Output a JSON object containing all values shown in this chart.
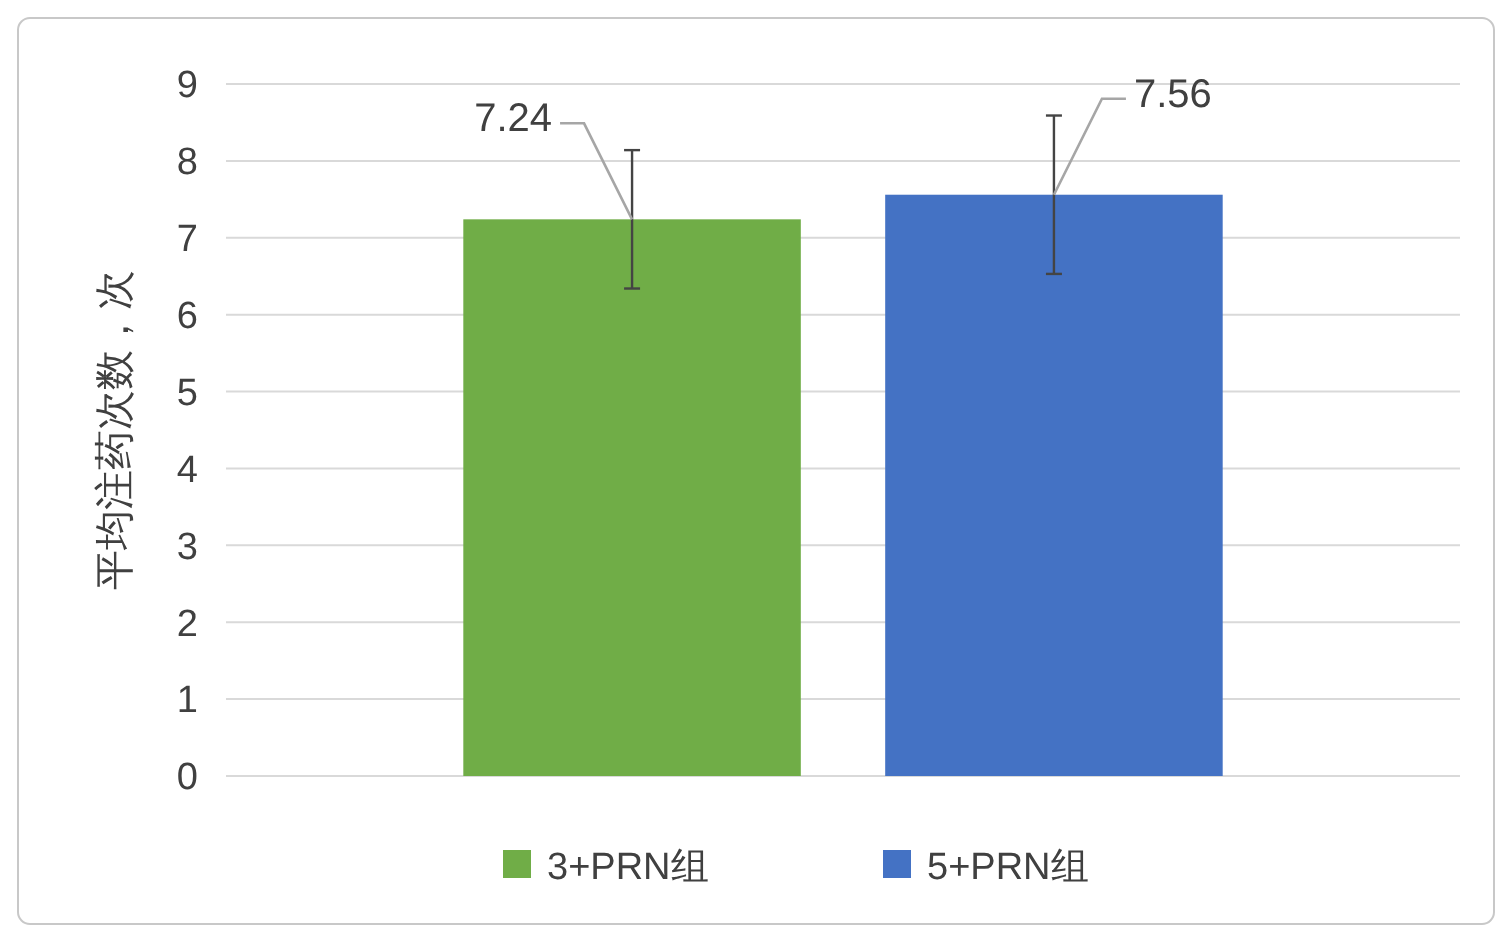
{
  "chart_data": {
    "type": "bar",
    "ylabel": "平均注药次数，次",
    "categories": [
      null
    ],
    "series": [
      {
        "name": "3+PRN组",
        "color": "#70ad47",
        "values": [
          7.24
        ],
        "errors": [
          0.9
        ]
      },
      {
        "name": "5+PRN组",
        "color": "#4472c4",
        "values": [
          7.56
        ],
        "errors": [
          1.03
        ]
      }
    ],
    "ylim": [
      0,
      9
    ],
    "yticks": [
      0,
      1,
      2,
      3,
      4,
      5,
      6,
      7,
      8,
      9
    ],
    "grid": "y",
    "legend": "bottom",
    "data_labels": true
  }
}
